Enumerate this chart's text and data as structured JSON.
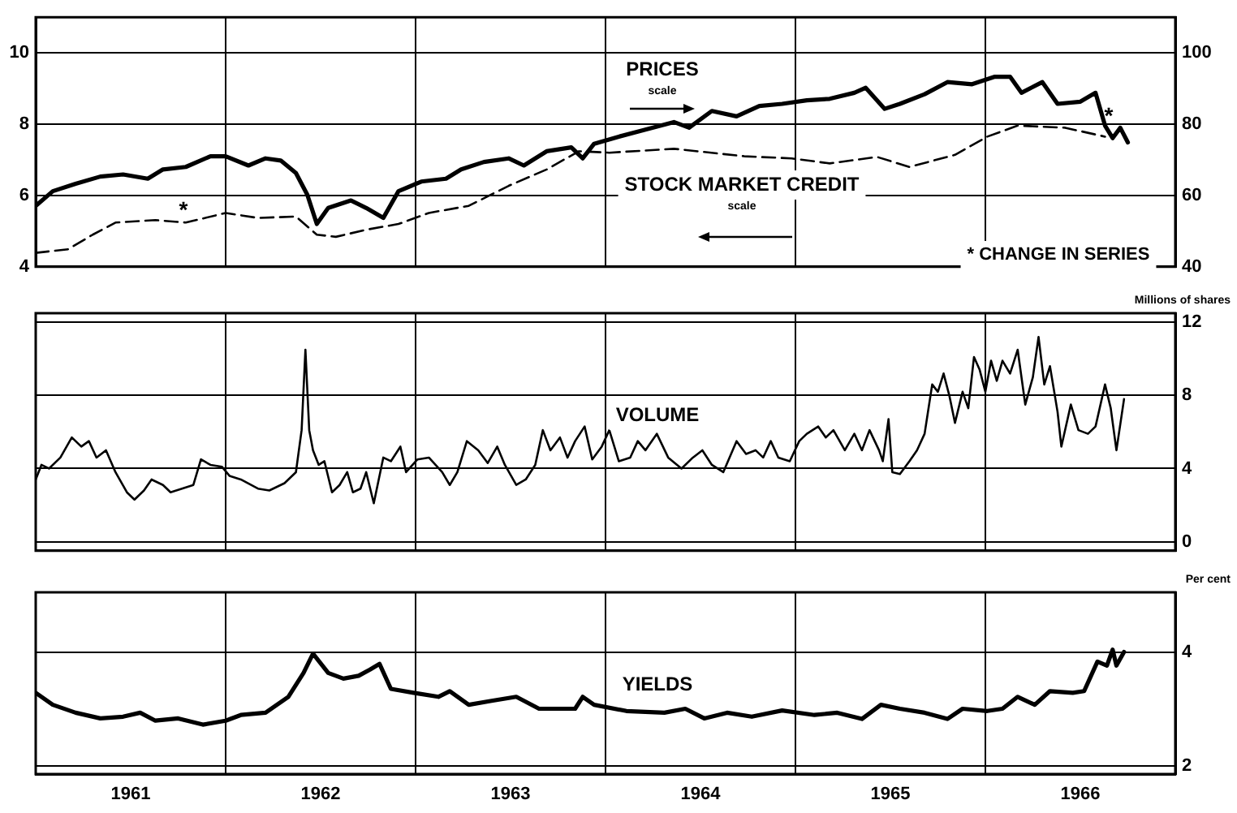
{
  "chart_data": [
    {
      "type": "line",
      "xlim": [
        1961,
        1967
      ],
      "xticks": [
        {
          "value": 1961,
          "label": null
        },
        {
          "value": 1962,
          "label": null
        },
        {
          "value": 1963,
          "label": null
        },
        {
          "value": 1964,
          "label": null
        },
        {
          "value": 1965,
          "label": null
        },
        {
          "value": 1966,
          "label": null
        },
        {
          "value": 1967,
          "label": null
        }
      ],
      "ylim": [
        4,
        11
      ],
      "yticks": [
        4,
        6,
        8,
        10
      ],
      "y2lim": [
        40,
        110
      ],
      "y2ticks": [
        40,
        60,
        80,
        100
      ],
      "grid": true,
      "tick_labels": "y",
      "series": [
        {
          "name": "PRICES",
          "color": "#000000",
          "axis": "y2",
          "x": [
            1961.0,
            1961.09,
            1961.21,
            1961.34,
            1961.46,
            1961.59,
            1961.67,
            1961.79,
            1961.92,
            1962.0,
            1962.12,
            1962.21,
            1962.29,
            1962.37,
            1962.43,
            1962.48,
            1962.54,
            1962.66,
            1962.74,
            1962.83,
            1962.91,
            1963.03,
            1963.16,
            1963.24,
            1963.36,
            1963.49,
            1963.57,
            1963.69,
            1963.82,
            1963.88,
            1963.94,
            1964.07,
            1964.19,
            1964.36,
            1964.44,
            1964.56,
            1964.69,
            1964.81,
            1964.93,
            1965.06,
            1965.18,
            1965.31,
            1965.37,
            1965.47,
            1965.55,
            1965.68,
            1965.8,
            1965.93,
            1966.05,
            1966.13,
            1966.19,
            1966.3,
            1966.38,
            1966.5,
            1966.58,
            1966.63,
            1966.67,
            1966.71,
            1966.75
          ],
          "values": [
            57.1,
            61.2,
            63.3,
            65.3,
            65.9,
            64.7,
            67.3,
            68.0,
            71.0,
            71.0,
            68.4,
            70.4,
            69.8,
            66.3,
            60.2,
            52.0,
            56.5,
            58.6,
            56.5,
            53.7,
            61.2,
            63.9,
            64.7,
            67.3,
            69.4,
            70.4,
            68.4,
            72.4,
            73.5,
            70.4,
            74.5,
            76.5,
            78.2,
            80.6,
            79.0,
            83.7,
            82.2,
            85.1,
            85.7,
            86.7,
            87.1,
            88.8,
            90.2,
            84.3,
            85.7,
            88.4,
            91.8,
            91.2,
            93.3,
            93.3,
            88.8,
            91.8,
            85.7,
            86.3,
            88.8,
            79.6,
            76.1,
            79.0,
            74.9
          ]
        },
        {
          "name": "STOCK MARKET CREDIT",
          "color": "#000000",
          "line_style": "dashed",
          "x": [
            1961.0,
            1961.17,
            1961.3,
            1961.42,
            1961.63,
            1961.79,
            1962.0,
            1962.17,
            1962.37,
            1962.48,
            1962.58,
            1962.74,
            1962.91,
            1963.07,
            1963.28,
            1963.49,
            1963.69,
            1963.86,
            1964.02,
            1964.36,
            1964.73,
            1964.98,
            1965.18,
            1965.43,
            1965.6,
            1965.84,
            1966.01,
            1966.17,
            1966.42,
            1966.63
          ],
          "values": [
            4.39,
            4.49,
            4.9,
            5.24,
            5.31,
            5.24,
            5.51,
            5.37,
            5.41,
            4.9,
            4.84,
            5.04,
            5.2,
            5.51,
            5.71,
            6.27,
            6.73,
            7.24,
            7.2,
            7.31,
            7.1,
            7.04,
            6.9,
            7.08,
            6.8,
            7.14,
            7.65,
            7.96,
            7.9,
            7.65
          ]
        }
      ],
      "annotations": [
        "scale",
        "scale",
        "*",
        "*",
        "* CHANGE IN SERIES"
      ]
    },
    {
      "type": "line",
      "xlim": [
        1961,
        1967
      ],
      "xticks": [
        {
          "value": 1961,
          "label": null
        },
        {
          "value": 1962,
          "label": null
        },
        {
          "value": 1963,
          "label": null
        },
        {
          "value": 1964,
          "label": null
        },
        {
          "value": 1965,
          "label": null
        },
        {
          "value": 1966,
          "label": null
        },
        {
          "value": 1967,
          "label": null
        }
      ],
      "ylim": [
        -0.5,
        12.5
      ],
      "yticks": [
        0,
        4,
        8,
        12
      ],
      "ylabel": "Millions of shares",
      "grid": true,
      "tick_labels": "y",
      "series": [
        {
          "name": "VOLUME",
          "color": "#000000",
          "x": [
            1961.0,
            1961.03,
            1961.07,
            1961.13,
            1961.19,
            1961.24,
            1961.28,
            1961.32,
            1961.37,
            1961.42,
            1961.48,
            1961.52,
            1961.57,
            1961.61,
            1961.67,
            1961.71,
            1961.77,
            1961.83,
            1961.87,
            1961.92,
            1961.98,
            1962.02,
            1962.08,
            1962.17,
            1962.23,
            1962.31,
            1962.37,
            1962.4,
            1962.42,
            1962.44,
            1962.46,
            1962.49,
            1962.52,
            1962.56,
            1962.6,
            1962.64,
            1962.67,
            1962.71,
            1962.74,
            1962.78,
            1962.83,
            1962.87,
            1962.92,
            1962.95,
            1963.01,
            1963.07,
            1963.14,
            1963.18,
            1963.22,
            1963.27,
            1963.33,
            1963.38,
            1963.43,
            1963.47,
            1963.53,
            1963.58,
            1963.63,
            1963.67,
            1963.71,
            1963.76,
            1963.8,
            1963.84,
            1963.89,
            1963.93,
            1963.98,
            1964.02,
            1964.07,
            1964.13,
            1964.17,
            1964.21,
            1964.27,
            1964.33,
            1964.4,
            1964.46,
            1964.51,
            1964.56,
            1964.62,
            1964.69,
            1964.74,
            1964.79,
            1964.83,
            1964.87,
            1964.91,
            1964.97,
            1965.02,
            1965.06,
            1965.12,
            1965.16,
            1965.2,
            1965.26,
            1965.31,
            1965.35,
            1965.39,
            1965.44,
            1965.46,
            1965.49,
            1965.51,
            1965.55,
            1965.6,
            1965.64,
            1965.68,
            1965.72,
            1965.75,
            1965.78,
            1965.81,
            1965.84,
            1965.88,
            1965.91,
            1965.94,
            1965.97,
            1966.0,
            1966.03,
            1966.06,
            1966.09,
            1966.13,
            1966.17,
            1966.21,
            1966.25,
            1966.28,
            1966.31,
            1966.34,
            1966.38,
            1966.4,
            1966.45,
            1966.49,
            1966.54,
            1966.58,
            1966.63,
            1966.66,
            1966.69,
            1966.73
          ],
          "values": [
            3.4,
            4.2,
            4.0,
            4.6,
            5.7,
            5.2,
            5.5,
            4.6,
            5.0,
            3.8,
            2.7,
            2.3,
            2.8,
            3.4,
            3.1,
            2.7,
            2.9,
            3.1,
            4.5,
            4.2,
            4.1,
            3.6,
            3.4,
            2.9,
            2.8,
            3.2,
            3.8,
            6.1,
            10.5,
            6.1,
            5.0,
            4.2,
            4.4,
            2.7,
            3.1,
            3.8,
            2.7,
            2.9,
            3.8,
            2.1,
            4.6,
            4.4,
            5.2,
            3.8,
            4.5,
            4.6,
            3.8,
            3.1,
            3.8,
            5.5,
            5.0,
            4.3,
            5.2,
            4.2,
            3.1,
            3.4,
            4.2,
            6.1,
            5.0,
            5.7,
            4.6,
            5.5,
            6.3,
            4.5,
            5.2,
            6.1,
            4.4,
            4.6,
            5.5,
            5.0,
            5.9,
            4.6,
            4.0,
            4.6,
            5.0,
            4.2,
            3.8,
            5.5,
            4.8,
            5.0,
            4.6,
            5.5,
            4.6,
            4.4,
            5.5,
            5.9,
            6.3,
            5.7,
            6.1,
            5.0,
            5.9,
            5.0,
            6.1,
            5.0,
            4.4,
            6.7,
            3.8,
            3.7,
            4.4,
            5.0,
            5.9,
            8.6,
            8.2,
            9.2,
            8.0,
            6.5,
            8.2,
            7.3,
            10.1,
            9.4,
            8.2,
            9.9,
            8.8,
            9.9,
            9.2,
            10.5,
            7.5,
            9.0,
            11.2,
            8.6,
            9.6,
            7.1,
            5.2,
            7.5,
            6.1,
            5.9,
            6.3,
            8.6,
            7.3,
            5.0,
            7.8
          ]
        }
      ]
    },
    {
      "type": "line",
      "xlim": [
        1961,
        1967
      ],
      "xticks": [
        {
          "value": 1961,
          "label": null
        },
        {
          "value": 1961.5,
          "label": "1961"
        },
        {
          "value": 1962,
          "label": null
        },
        {
          "value": 1962.5,
          "label": "1962"
        },
        {
          "value": 1963,
          "label": null
        },
        {
          "value": 1963.5,
          "label": "1963"
        },
        {
          "value": 1964,
          "label": null
        },
        {
          "value": 1964.5,
          "label": "1964"
        },
        {
          "value": 1965,
          "label": null
        },
        {
          "value": 1965.5,
          "label": "1965"
        },
        {
          "value": 1966,
          "label": null
        },
        {
          "value": 1966.5,
          "label": "1966"
        },
        {
          "value": 1967,
          "label": null
        }
      ],
      "ylim": [
        1.85,
        5.05
      ],
      "yticks": [
        2,
        4
      ],
      "ylabel": "Per cent",
      "grid": true,
      "series": [
        {
          "name": "YIELDS",
          "color": "#000000",
          "x": [
            1961.0,
            1961.09,
            1961.21,
            1961.34,
            1961.46,
            1961.55,
            1961.63,
            1961.75,
            1961.88,
            1962.0,
            1962.08,
            1962.21,
            1962.33,
            1962.41,
            1962.46,
            1962.54,
            1962.62,
            1962.7,
            1962.76,
            1962.81,
            1962.87,
            1962.99,
            1963.12,
            1963.18,
            1963.28,
            1963.4,
            1963.53,
            1963.65,
            1963.78,
            1963.84,
            1963.88,
            1963.94,
            1964.11,
            1964.31,
            1964.42,
            1964.52,
            1964.64,
            1964.77,
            1964.93,
            1965.1,
            1965.22,
            1965.35,
            1965.45,
            1965.55,
            1965.68,
            1965.8,
            1965.88,
            1966.01,
            1966.09,
            1966.17,
            1966.26,
            1966.34,
            1966.46,
            1966.52,
            1966.59,
            1966.64,
            1966.67,
            1966.69,
            1966.73
          ],
          "values": [
            3.28,
            3.07,
            2.93,
            2.83,
            2.86,
            2.93,
            2.79,
            2.83,
            2.72,
            2.79,
            2.89,
            2.93,
            3.21,
            3.63,
            3.97,
            3.63,
            3.53,
            3.58,
            3.69,
            3.79,
            3.35,
            3.28,
            3.21,
            3.31,
            3.07,
            3.14,
            3.21,
            3.0,
            3.0,
            3.0,
            3.21,
            3.07,
            2.96,
            2.93,
            3.0,
            2.83,
            2.93,
            2.86,
            2.97,
            2.89,
            2.93,
            2.82,
            3.07,
            3.0,
            2.93,
            2.82,
            3.0,
            2.96,
            3.0,
            3.21,
            3.07,
            3.31,
            3.28,
            3.31,
            3.83,
            3.76,
            4.04,
            3.76,
            4.0
          ]
        }
      ]
    }
  ]
}
